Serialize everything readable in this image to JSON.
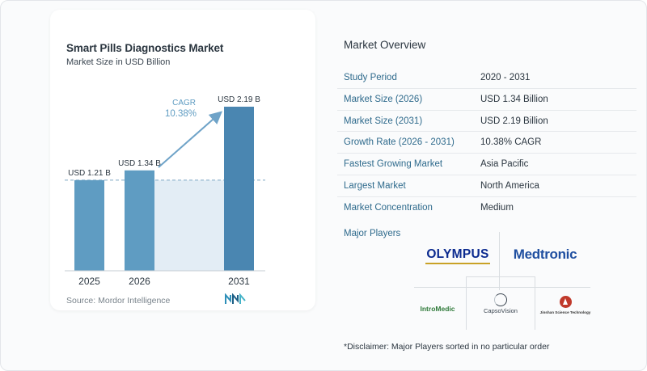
{
  "chart": {
    "title": "Smart Pills Diagnostics Market",
    "subtitle": "Market Size in USD Billion",
    "source": "Source:  Mordor Intelligence",
    "cagr_label": "CAGR",
    "cagr_value": "10.38%",
    "colors": {
      "bar": "#5f9cc2",
      "bar_dark": "#4a86b1",
      "shade": "#e3edf5",
      "arrow": "#6fa3c8",
      "cagr_text": "#5f9cc2"
    }
  },
  "chart_data": {
    "type": "bar",
    "categories": [
      "2025",
      "2026",
      "2031"
    ],
    "values": [
      1.21,
      1.34,
      2.19
    ],
    "data_labels": [
      "USD 1.21 B",
      "USD 1.34 B",
      "USD 2.19 B"
    ],
    "ylim": [
      0,
      2.19
    ],
    "xlabel": "",
    "ylabel": "",
    "grid": false,
    "title": "Smart Pills Diagnostics Market"
  },
  "overview": {
    "title": "Market Overview",
    "rows": [
      {
        "label": "Study Period",
        "value": "2020 - 2031"
      },
      {
        "label": "Market Size (2026)",
        "value": "USD 1.34 Billion"
      },
      {
        "label": "Market Size (2031)",
        "value": "USD 2.19 Billion"
      },
      {
        "label": "Growth Rate (2026 - 2031)",
        "value": "10.38% CAGR"
      },
      {
        "label": "Fastest Growing Market",
        "value": "Asia Pacific"
      },
      {
        "label": "Largest Market",
        "value": "North America"
      },
      {
        "label": "Market Concentration",
        "value": "Medium"
      }
    ]
  },
  "players": {
    "title": "Major Players",
    "logos": {
      "olympus": "OLYMPUS",
      "medtronic": "Medtronic",
      "intromedic": "IntroMedic",
      "intromedic_sub": "",
      "capsovision": "CapsoVision",
      "capsovision_tag": "",
      "jinshan": "Jinshan Science Technology"
    },
    "disclaimer": "*Disclaimer: Major Players sorted in no particular order"
  }
}
